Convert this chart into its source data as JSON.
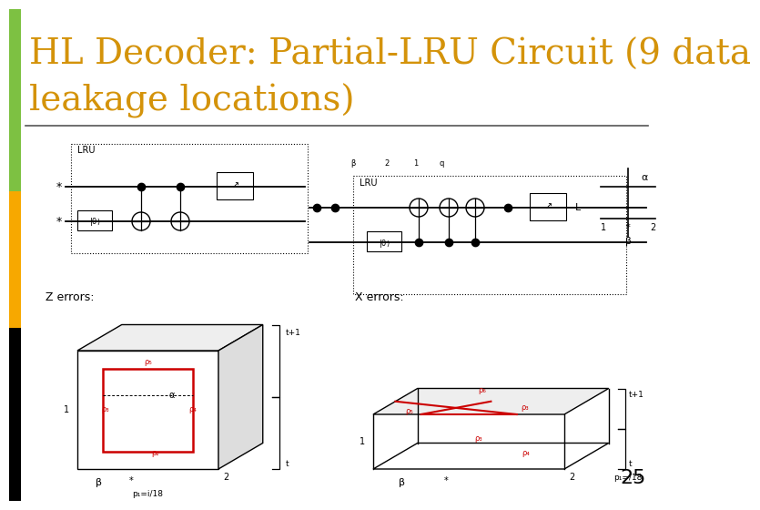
{
  "title_line1": "HL Decoder: Partial-LRU Circuit (9 data",
  "title_line2": "leakage locations)",
  "title_color": "#D4930A",
  "title_fontsize": 28,
  "page_number": "25",
  "bg_color": "#ffffff",
  "bar_colors": [
    "#7DC142",
    "#F7A800",
    "#000000"
  ],
  "divider_color": "#555555",
  "rho_color": "#CC0000",
  "red_box_color": "#CC0000"
}
